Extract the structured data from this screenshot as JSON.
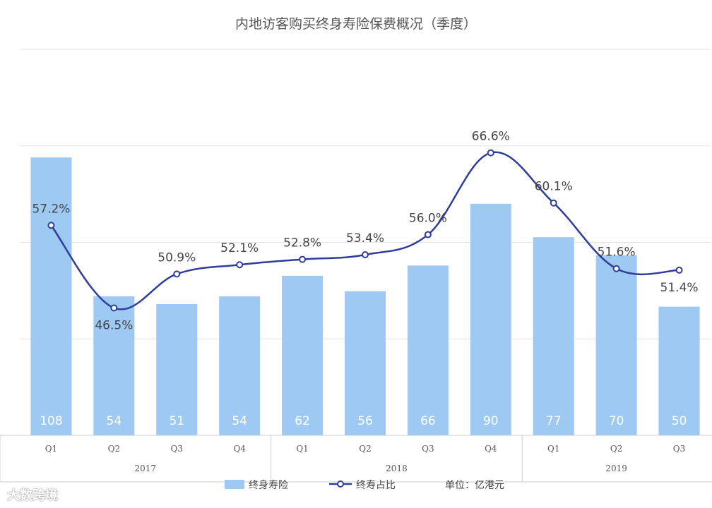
{
  "chart_data": {
    "type": "bar+line",
    "title": "内地访客购买终身寿险保费概况（季度）",
    "quarters": [
      "Q1",
      "Q2",
      "Q3",
      "Q4",
      "Q1",
      "Q2",
      "Q3",
      "Q4",
      "Q1",
      "Q2",
      "Q3"
    ],
    "years": [
      {
        "label": "2017",
        "span": 4
      },
      {
        "label": "2018",
        "span": 4
      },
      {
        "label": "2019",
        "span": 3
      }
    ],
    "series": [
      {
        "name": "终身寿险",
        "kind": "bar",
        "values": [
          108,
          54,
          51,
          54,
          62,
          56,
          66,
          90,
          77,
          70,
          50
        ],
        "labels": [
          "108",
          "54",
          "51",
          "54",
          "62",
          "56",
          "66",
          "90",
          "77",
          "70",
          "50"
        ]
      },
      {
        "name": "终寿占比",
        "kind": "line",
        "values": [
          57.2,
          46.5,
          50.9,
          52.1,
          52.8,
          53.4,
          56.0,
          66.6,
          60.1,
          51.6,
          51.4
        ],
        "labels": [
          "57.2%",
          "46.5%",
          "50.9%",
          "52.1%",
          "52.8%",
          "53.4%",
          "56.0%",
          "66.6%",
          "60.1%",
          "51.6%",
          "51.4%"
        ]
      }
    ],
    "bar_ylim": [
      0,
      150
    ],
    "line_ylim": [
      30,
      80
    ],
    "unit_label": "单位：亿港元",
    "colors": {
      "bar": "#9ec9f2",
      "line": "#2e3d9b",
      "grid": "#e3e3e3",
      "text": "#444444"
    }
  },
  "watermark": "大数跨境"
}
